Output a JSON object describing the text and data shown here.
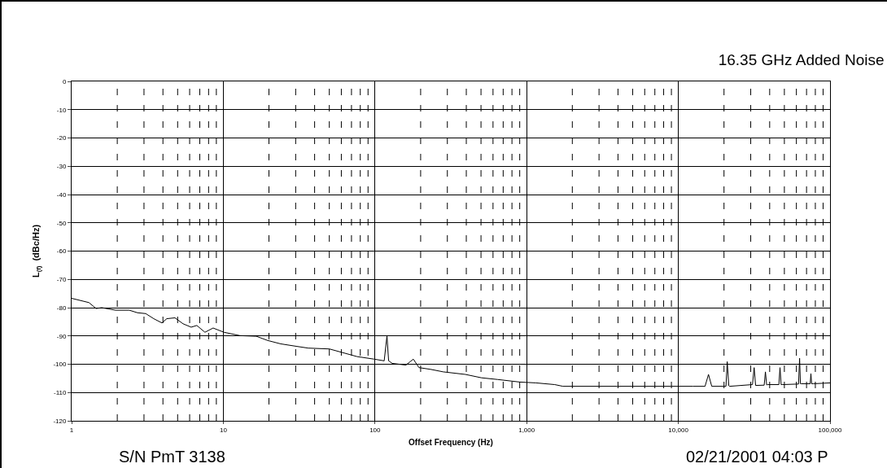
{
  "chart_data": {
    "type": "line",
    "title": "16.35 GHz Added Noise",
    "xlabel": "Offset Frequency (Hz)",
    "ylabel": "L$_{(f)}$  (dBc/Hz)",
    "annotations": [
      "S/N PmT 3138",
      "02/21/2001 04:03 P"
    ],
    "log": "x",
    "grid": "xy",
    "marker": "none",
    "line_style": "solid",
    "xlim": [
      1,
      100000
    ],
    "ylim": [
      -120,
      0
    ],
    "xticks": [
      1,
      {
        "value": 2,
        "label": null
      },
      {
        "value": 3,
        "label": null
      },
      {
        "value": 4,
        "label": null
      },
      {
        "value": 5,
        "label": null
      },
      {
        "value": 6,
        "label": null
      },
      {
        "value": 7,
        "label": null
      },
      {
        "value": 8,
        "label": null
      },
      {
        "value": 9,
        "label": null
      },
      10,
      {
        "value": 20,
        "label": null
      },
      {
        "value": 30,
        "label": null
      },
      {
        "value": 40,
        "label": null
      },
      {
        "value": 50,
        "label": null
      },
      {
        "value": 60,
        "label": null
      },
      {
        "value": 70,
        "label": null
      },
      {
        "value": 80,
        "label": null
      },
      {
        "value": 90,
        "label": null
      },
      100,
      {
        "value": 200,
        "label": null
      },
      {
        "value": 300,
        "label": null
      },
      {
        "value": 400,
        "label": null
      },
      {
        "value": 500,
        "label": null
      },
      {
        "value": 600,
        "label": null
      },
      {
        "value": 700,
        "label": null
      },
      {
        "value": 800,
        "label": null
      },
      {
        "value": 900,
        "label": null
      },
      {
        "value": 1000,
        "label": "1,000"
      },
      {
        "value": 2000,
        "label": null
      },
      {
        "value": 3000,
        "label": null
      },
      {
        "value": 4000,
        "label": null
      },
      {
        "value": 5000,
        "label": null
      },
      {
        "value": 6000,
        "label": null
      },
      {
        "value": 7000,
        "label": null
      },
      {
        "value": 8000,
        "label": null
      },
      {
        "value": 9000,
        "label": null
      },
      {
        "value": 10000,
        "label": "10,000"
      },
      {
        "value": 20000,
        "label": null
      },
      {
        "value": 30000,
        "label": null
      },
      {
        "value": 40000,
        "label": null
      },
      {
        "value": 50000,
        "label": null
      },
      {
        "value": 60000,
        "label": null
      },
      {
        "value": 70000,
        "label": null
      },
      {
        "value": 80000,
        "label": null
      },
      {
        "value": 90000,
        "label": null
      },
      {
        "value": 100000,
        "label": "100,000"
      }
    ],
    "yticks": [
      -120,
      -110,
      -100,
      -90,
      -80,
      -70,
      -60,
      -50,
      -40,
      -30,
      -20,
      -10,
      0
    ],
    "series": [
      {
        "color": "#000000",
        "x": [
          1,
          1.3,
          1.45,
          1.58,
          1.95,
          2.4,
          2.72,
          3.08,
          3.48,
          3.94,
          4.24,
          4.8,
          5.43,
          6.14,
          6.69,
          7.57,
          8.57,
          10.1,
          12.9,
          16.5,
          19.6,
          23.9,
          30.6,
          36.3,
          50.1,
          76.2,
          98.8,
          115,
          120,
          123,
          130,
          160,
          179,
          195,
          232,
          282,
          394,
          504,
          645,
          900,
          1153,
          1531,
          1733,
          3960,
          8950,
          12500,
          15000,
          15800,
          16600,
          20000,
          20600,
          21000,
          21500,
          21800,
          30800,
          31600,
          32300,
          36800,
          37500,
          38200,
          38900,
          46000,
          46800,
          47600,
          48500,
          62000,
          63000,
          63800,
          64500,
          74000,
          74800,
          75600,
          77600,
          100000
        ],
        "values": [
          -76.7,
          -78.2,
          -80.3,
          -80.0,
          -80.9,
          -80.9,
          -81.8,
          -82.1,
          -83.9,
          -85.4,
          -83.9,
          -83.6,
          -85.7,
          -86.9,
          -86.3,
          -88.7,
          -87.2,
          -88.7,
          -89.9,
          -90.1,
          -91.6,
          -92.8,
          -93.7,
          -94.3,
          -94.6,
          -97.3,
          -98.2,
          -98.8,
          -89.9,
          -98.8,
          -99.7,
          -100.3,
          -98.2,
          -101.2,
          -101.8,
          -102.7,
          -103.6,
          -104.8,
          -105.4,
          -106.3,
          -106.6,
          -107.2,
          -107.8,
          -107.8,
          -107.8,
          -107.8,
          -107.8,
          -103.6,
          -107.8,
          -107.8,
          -107.8,
          -99.1,
          -107.6,
          -107.8,
          -107.2,
          -101.2,
          -107.5,
          -107.4,
          -102.7,
          -107.3,
          -107.2,
          -107.2,
          -101.2,
          -107.2,
          -107.2,
          -107.0,
          -97.9,
          -106.9,
          -106.9,
          -106.9,
          -103.3,
          -106.9,
          -106.9,
          -106.6
        ]
      }
    ]
  }
}
